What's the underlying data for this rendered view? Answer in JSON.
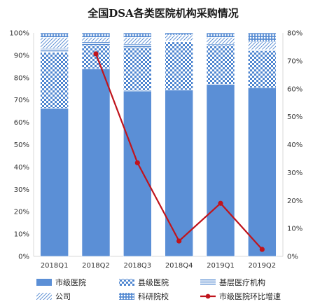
{
  "chart_data": {
    "type": "bar",
    "stacked": true,
    "title": "全国DSA各类医院机构采购情况",
    "categories": [
      "2018Q1",
      "2018Q2",
      "2018Q3",
      "2018Q4",
      "2019Q1",
      "2019Q2"
    ],
    "series": [
      {
        "name": "市级医院",
        "axis": "left",
        "values": [
          66.3,
          84.0,
          74.0,
          74.5,
          77.0,
          75.5
        ],
        "color": "#5b8fd6",
        "pattern": "solid"
      },
      {
        "name": "县级医院",
        "axis": "left",
        "values": [
          25.0,
          10.5,
          19.5,
          21.5,
          17.5,
          16.5
        ],
        "color": "#4f86d0",
        "pattern": "checker"
      },
      {
        "name": "基层医疗机构",
        "axis": "left",
        "values": [
          1.7,
          1.5,
          1.5,
          0.5,
          0.5,
          0.5
        ],
        "color": "#4f86d0",
        "pattern": "hlines"
      },
      {
        "name": "公司",
        "axis": "left",
        "values": [
          5.0,
          2.0,
          3.0,
          2.5,
          3.0,
          3.5
        ],
        "color": "#4f86d0",
        "pattern": "diag"
      },
      {
        "name": "科研院校",
        "axis": "left",
        "values": [
          2.0,
          2.0,
          2.0,
          1.0,
          2.0,
          4.0
        ],
        "color": "#4f86d0",
        "pattern": "grid"
      },
      {
        "name": "市级医院环比增速",
        "axis": "right",
        "type": "line",
        "values": [
          null,
          72.5,
          33.5,
          5.5,
          19.0,
          2.5
        ],
        "color": "#c0141c"
      }
    ],
    "y_left": {
      "min": 0,
      "max": 100,
      "step": 10,
      "tick_suffix": "%"
    },
    "y_right": {
      "min": 0,
      "max": 80,
      "step": 10,
      "tick_suffix": "%"
    },
    "legend_position": "bottom",
    "grid": false
  }
}
